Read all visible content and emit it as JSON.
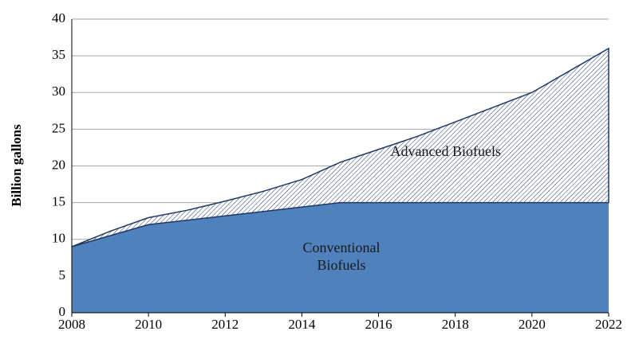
{
  "chart_data": {
    "type": "area",
    "stacked": true,
    "y_label": "Billion gallons",
    "x": [
      2008,
      2009,
      2010,
      2011,
      2012,
      2013,
      2014,
      2015,
      2016,
      2017,
      2018,
      2019,
      2020,
      2021,
      2022
    ],
    "series": [
      {
        "name": "Conventional Biofuels",
        "color": "#4f81bd",
        "values": [
          9,
          10.5,
          12,
          12.6,
          13.2,
          13.8,
          14.4,
          15,
          15,
          15,
          15,
          15,
          15,
          15,
          15
        ]
      },
      {
        "name": "Advanced Biofuels",
        "color": "#1f3864",
        "hatched": true,
        "values": [
          0,
          0.6,
          0.95,
          1.35,
          2.0,
          2.75,
          3.75,
          5.5,
          7.25,
          9,
          11,
          13,
          15,
          18,
          21
        ]
      }
    ],
    "xlim": [
      2008,
      2022
    ],
    "xticks": [
      2008,
      2010,
      2012,
      2014,
      2016,
      2018,
      2020,
      2022
    ],
    "ylim": [
      0,
      40
    ],
    "yticks": [
      0,
      5,
      10,
      15,
      20,
      25,
      30,
      35,
      40
    ],
    "grid": true
  }
}
